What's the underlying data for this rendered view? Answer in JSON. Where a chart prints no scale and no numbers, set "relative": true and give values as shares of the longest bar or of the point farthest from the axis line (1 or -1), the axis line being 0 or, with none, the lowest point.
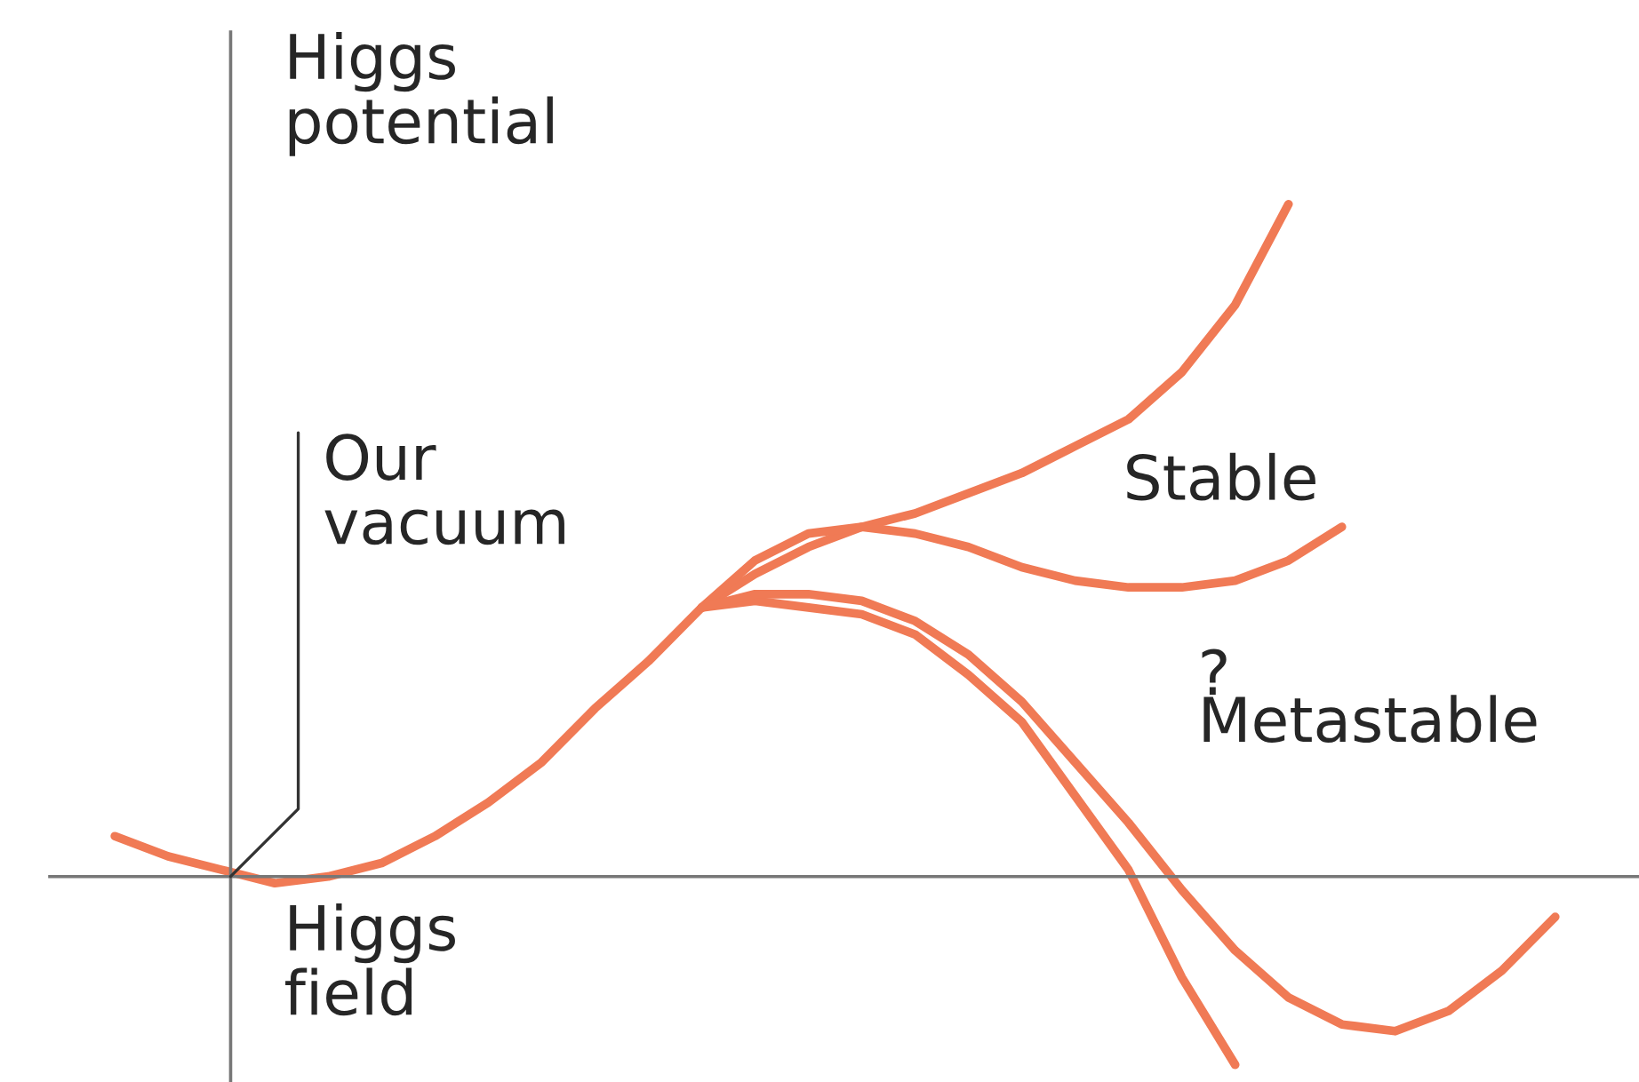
{
  "chart_data": {
    "type": "line",
    "relative": true,
    "xlabel": "Higgs field",
    "ylabel": "Higgs potential",
    "marker": "none",
    "line_style": "solid",
    "categories": [
      null,
      null,
      null,
      null,
      null,
      null,
      null,
      null,
      null,
      null,
      null,
      null,
      null,
      null,
      null,
      null,
      null,
      null,
      null,
      null,
      null,
      null,
      null,
      null,
      null,
      null,
      null,
      null
    ],
    "series": [
      {
        "color": "#f07a55",
        "values": [
          0.06,
          0.03,
          0.01,
          -0.01,
          0,
          0.02,
          0.06,
          0.11,
          0.17,
          0.25,
          0.32,
          0.4,
          0.45,
          0.49,
          0.52,
          0.54,
          0.57,
          0.6,
          0.64,
          0.68,
          0.75,
          0.85,
          1.0,
          null,
          null,
          null,
          null,
          null
        ]
      },
      {
        "color": "#f07a55",
        "values": [
          null,
          null,
          null,
          null,
          null,
          null,
          null,
          null,
          null,
          null,
          null,
          0.4,
          0.47,
          0.51,
          0.52,
          0.51,
          0.49,
          0.46,
          0.44,
          0.43,
          0.43,
          0.44,
          0.47,
          0.52,
          null,
          null,
          null,
          null
        ]
      },
      {
        "color": "#f07a55",
        "values": [
          null,
          null,
          null,
          null,
          null,
          null,
          null,
          null,
          null,
          null,
          null,
          0.4,
          0.41,
          0.4,
          0.39,
          0.36,
          0.3,
          0.23,
          0.12,
          0.01,
          -0.15,
          -0.28,
          null,
          null,
          null,
          null,
          null,
          null
        ]
      },
      {
        "color": "#f07a55",
        "values": [
          null,
          null,
          null,
          null,
          null,
          null,
          null,
          null,
          null,
          null,
          null,
          0.4,
          0.42,
          0.42,
          0.41,
          0.38,
          0.33,
          0.26,
          0.17,
          0.08,
          -0.02,
          -0.11,
          -0.18,
          -0.22,
          -0.23,
          -0.2,
          -0.14,
          -0.06
        ]
      }
    ],
    "annotations": [
      "Our vacuum",
      "Stable",
      "?",
      "Metastable"
    ]
  }
}
